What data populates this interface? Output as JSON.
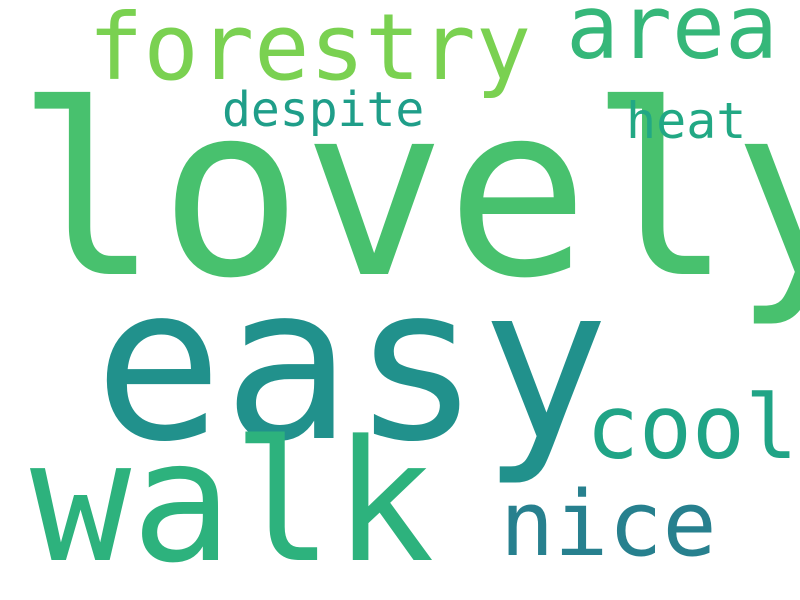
{
  "words": {
    "lovely": {
      "text": "lovely",
      "color": "#48c16e"
    },
    "easy": {
      "text": "easy",
      "color": "#21918c"
    },
    "walk": {
      "text": "walk",
      "color": "#2db27d"
    },
    "forestry": {
      "text": "forestry",
      "color": "#7ad151"
    },
    "area": {
      "text": "area",
      "color": "#35b779"
    },
    "nice": {
      "text": "nice",
      "color": "#27808e"
    },
    "cool": {
      "text": "cool",
      "color": "#20a486"
    },
    "despite": {
      "text": "despite",
      "color": "#1f9e89"
    },
    "heat": {
      "text": "heat",
      "color": "#22a884"
    }
  }
}
